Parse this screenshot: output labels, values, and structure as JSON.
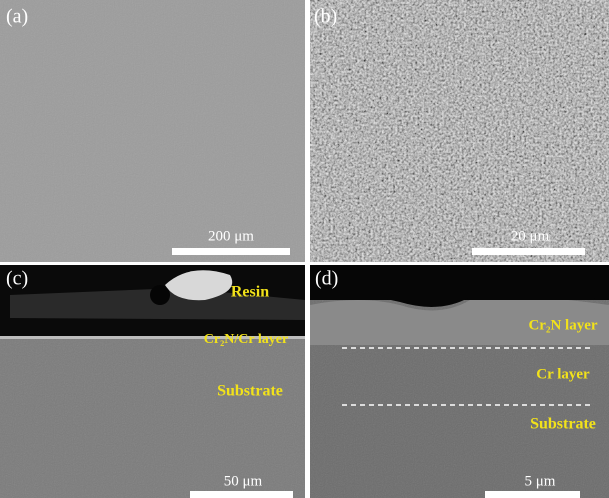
{
  "panels": [
    {
      "label": "(a)",
      "scale_bar": "200 μm"
    },
    {
      "label": "(b)",
      "scale_bar": "20 μm"
    },
    {
      "label": "(c)",
      "scale_bar": "50 μm",
      "annotations": [
        "Resin",
        "Cr₂N/Cr layer",
        "Substrate"
      ]
    },
    {
      "label": "(d)",
      "scale_bar": "5 μm",
      "annotations": [
        "Cr₂N layer",
        "Cr layer",
        "Substrate"
      ]
    }
  ]
}
